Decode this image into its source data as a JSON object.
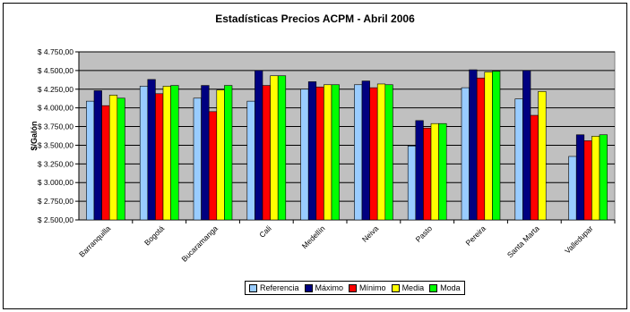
{
  "chart_data": {
    "type": "bar",
    "title": "Estadísticas Precios ACPM - Abril 2006",
    "ylabel": "$/Galón",
    "xlabel": "",
    "ylim": [
      2500,
      4750
    ],
    "ytick_values": [
      2500,
      2750,
      3000,
      3250,
      3500,
      3750,
      4000,
      4250,
      4500,
      4750
    ],
    "ytick_labels": [
      "$ 2.500,00",
      "$ 2.750,00",
      "$ 3.000,00",
      "$ 3.250,00",
      "$ 3.500,00",
      "$ 3.750,00",
      "$ 4.000,00",
      "$ 4.250,00",
      "$ 4.500,00",
      "$ 4.750,00"
    ],
    "categories": [
      "Barranquilla",
      "Bogotá",
      "Bucaramanga",
      "Cali",
      "Medellín",
      "Neiva",
      "Pasto",
      "Pereira",
      "Santa Marta",
      "Valledupar"
    ],
    "series": [
      {
        "name": "Referencia",
        "color": "#99ccff",
        "values": [
          4090,
          4290,
          4130,
          4090,
          4250,
          4310,
          3490,
          4270,
          4120,
          3350
        ]
      },
      {
        "name": "Máximo",
        "color": "#000080",
        "values": [
          4230,
          4380,
          4300,
          4500,
          4350,
          4360,
          3830,
          4510,
          4500,
          3640
        ]
      },
      {
        "name": "Mínimo",
        "color": "#ff0000",
        "values": [
          4030,
          4190,
          3950,
          4300,
          4280,
          4270,
          3730,
          4400,
          3900,
          3560
        ]
      },
      {
        "name": "Media",
        "color": "#ffff00",
        "values": [
          4170,
          4290,
          4240,
          4430,
          4310,
          4320,
          3790,
          4480,
          4220,
          3620
        ]
      },
      {
        "name": "Moda",
        "color": "#00ff00",
        "values": [
          4130,
          4300,
          4300,
          4430,
          4310,
          4310,
          3790,
          4490,
          null,
          3640
        ]
      }
    ],
    "grid": true,
    "plot_background": "#c0c0c0",
    "legend_position": "bottom"
  }
}
